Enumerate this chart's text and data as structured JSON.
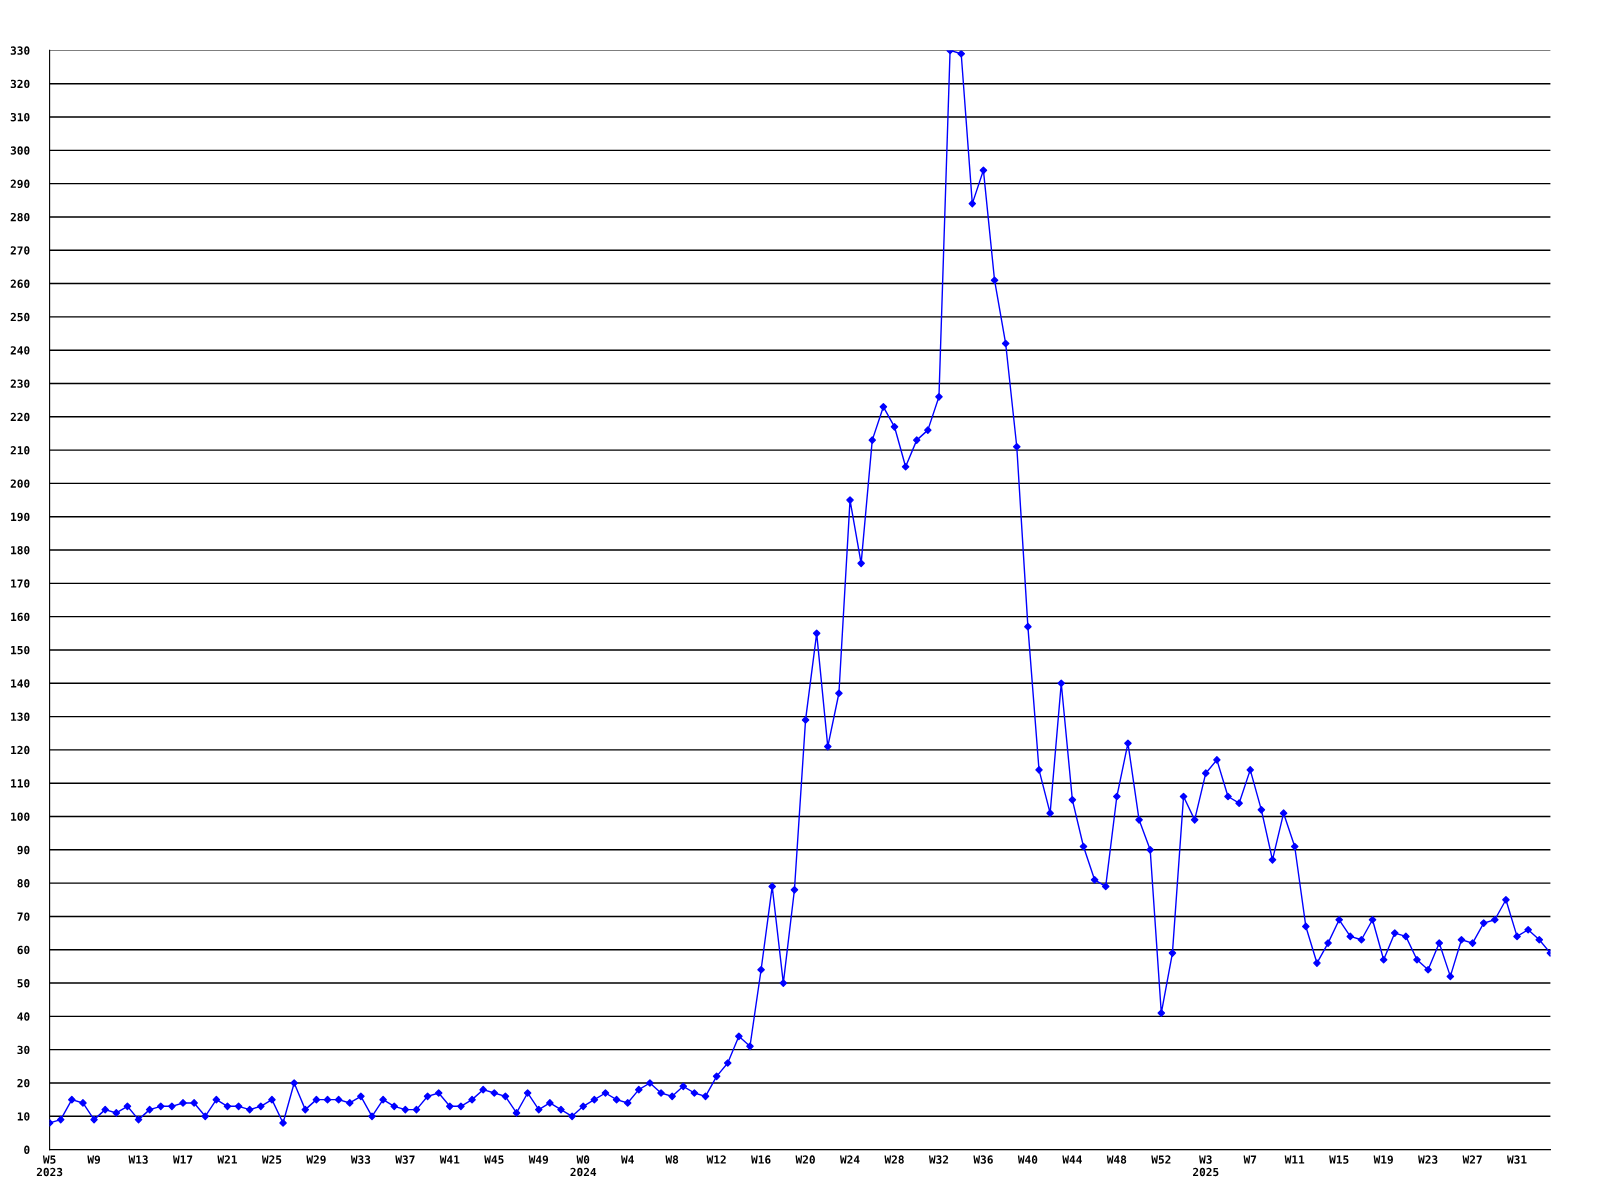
{
  "chart_data": {
    "type": "line",
    "marker": "diamond",
    "line_style": "solid",
    "grid": "y",
    "ylim": [
      0,
      330
    ],
    "yticks": [
      0,
      10,
      20,
      30,
      40,
      50,
      60,
      70,
      80,
      90,
      100,
      110,
      120,
      130,
      140,
      150,
      160,
      170,
      180,
      190,
      200,
      210,
      220,
      230,
      240,
      250,
      260,
      270,
      280,
      290,
      300,
      310,
      320,
      330
    ],
    "categories": [
      "W5\n2023",
      null,
      null,
      null,
      "W9",
      null,
      null,
      null,
      "W13",
      null,
      null,
      null,
      "W17",
      null,
      null,
      null,
      "W21",
      null,
      null,
      null,
      "W25",
      null,
      null,
      null,
      "W29",
      null,
      null,
      null,
      "W33",
      null,
      null,
      null,
      "W37",
      null,
      null,
      null,
      "W41",
      null,
      null,
      null,
      "W45",
      null,
      null,
      null,
      "W49",
      null,
      null,
      null,
      "W0\n2024",
      null,
      null,
      null,
      "W4",
      null,
      null,
      null,
      "W8",
      null,
      null,
      null,
      "W12",
      null,
      null,
      null,
      "W16",
      null,
      null,
      null,
      "W20",
      null,
      null,
      null,
      "W24",
      null,
      null,
      null,
      "W28",
      null,
      null,
      null,
      "W32",
      null,
      null,
      null,
      "W36",
      null,
      null,
      null,
      "W40",
      null,
      null,
      null,
      "W44",
      null,
      null,
      null,
      "W48",
      null,
      null,
      null,
      "W52",
      null,
      null,
      null,
      "W3\n2025",
      null,
      null,
      null,
      "W7",
      null,
      null,
      null,
      "W11",
      null,
      null,
      null,
      "W15",
      null,
      null,
      null,
      "W19",
      null,
      null,
      null,
      "W23",
      null,
      null,
      null,
      "W27",
      null,
      null,
      null,
      "W31",
      null,
      null,
      null
    ],
    "series": [
      {
        "color": "#0000ff",
        "values": [
          8,
          9,
          15,
          14,
          9,
          12,
          11,
          13,
          9,
          12,
          13,
          13,
          14,
          14,
          10,
          15,
          13,
          13,
          12,
          13,
          15,
          8,
          20,
          12,
          15,
          15,
          15,
          14,
          16,
          10,
          15,
          13,
          12,
          12,
          16,
          17,
          13,
          13,
          15,
          18,
          17,
          16,
          11,
          17,
          12,
          14,
          12,
          10,
          13,
          15,
          17,
          15,
          14,
          18,
          20,
          17,
          16,
          19,
          17,
          16,
          22,
          26,
          34,
          31,
          54,
          79,
          50,
          78,
          129,
          155,
          121,
          137,
          195,
          176,
          213,
          223,
          217,
          205,
          213,
          216,
          226,
          330,
          329,
          284,
          294,
          261,
          242,
          211,
          157,
          114,
          101,
          140,
          105,
          91,
          81,
          79,
          106,
          122,
          99,
          90,
          41,
          59,
          106,
          99,
          113,
          117,
          106,
          104,
          114,
          102,
          87,
          101,
          91,
          67,
          56,
          62,
          69,
          64,
          63,
          69,
          57,
          65,
          64,
          57,
          54,
          62,
          52,
          63,
          62,
          68,
          69,
          75,
          64,
          66,
          63,
          59
        ]
      }
    ]
  }
}
